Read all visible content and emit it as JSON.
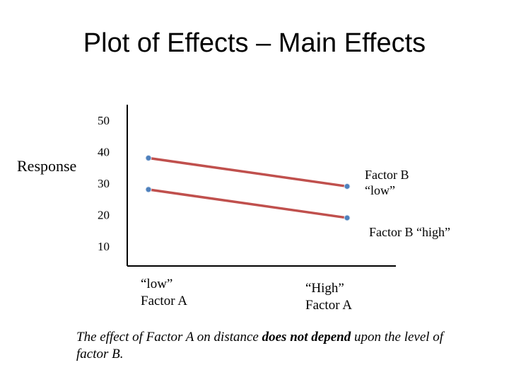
{
  "title": "Plot of Effects – Main Effects",
  "caption": {
    "part1": "The effect of Factor A on distance ",
    "emphasis": "does not depend",
    "part2": " upon the level of factor B."
  },
  "chart_data": {
    "type": "line",
    "ylabel": "Response",
    "yticks": [
      50,
      40,
      30,
      20,
      10
    ],
    "ylim": [
      5,
      55
    ],
    "categories": [
      "“low”\nFactor A",
      "“High”\nFactor A"
    ],
    "category_lines": [
      [
        "“low”",
        "Factor A"
      ],
      [
        "“High”",
        "Factor A"
      ]
    ],
    "series": [
      {
        "name": "Factor B “low”",
        "name_lines": [
          "Factor B",
          "“low”"
        ],
        "values": [
          38,
          29
        ]
      },
      {
        "name": "Factor B “high”",
        "name_lines": [
          "Factor B “high”"
        ],
        "values": [
          28,
          19
        ]
      }
    ],
    "line_color": "#c0504d",
    "marker_color": "#4f81bd",
    "grid": false
  }
}
